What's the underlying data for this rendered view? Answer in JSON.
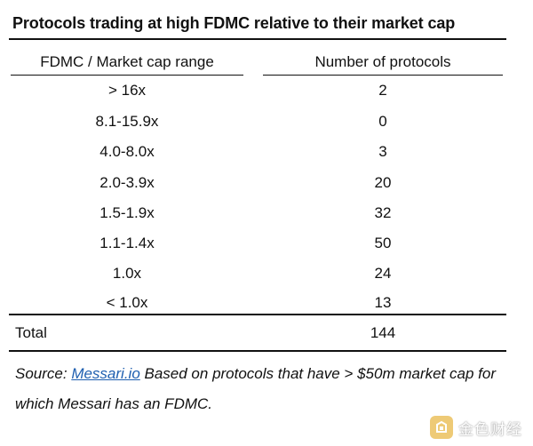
{
  "title": "Protocols trading at high FDMC relative to their market cap",
  "table": {
    "headers": [
      "FDMC / Market cap range",
      "Number of protocols"
    ],
    "rows": [
      {
        "range": "> 16x",
        "count": "2"
      },
      {
        "range": "8.1-15.9x",
        "count": "0"
      },
      {
        "range": "4.0-8.0x",
        "count": "3"
      },
      {
        "range": "2.0-3.9x",
        "count": "20"
      },
      {
        "range": "1.5-1.9x",
        "count": "32"
      },
      {
        "range": "1.1-1.4x",
        "count": "50"
      },
      {
        "range": "1.0x",
        "count": "24"
      },
      {
        "range": "< 1.0x",
        "count": "13"
      }
    ],
    "total_label": "Total",
    "total_value": "144"
  },
  "source": {
    "prefix": "Source: ",
    "link": "Messari.io",
    "text": " Based on protocols that have > $50m market cap for which Messari has an FDMC."
  },
  "watermark": {
    "text": "金色财经",
    "icon": "golden-finance-logo-icon",
    "logo_color": "#e9b949"
  }
}
